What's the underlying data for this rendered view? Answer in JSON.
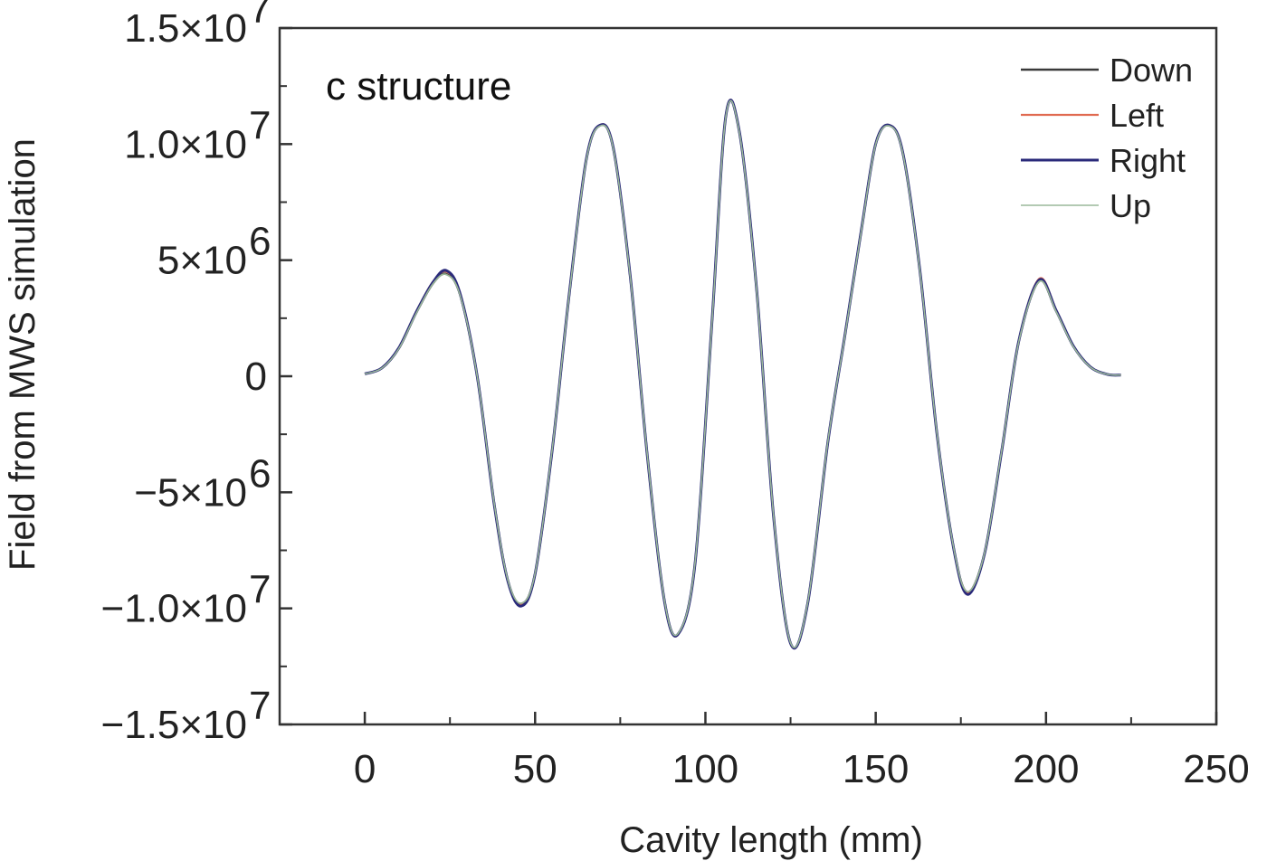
{
  "chart_data": {
    "type": "line",
    "title": "",
    "annotation": "c structure",
    "xlabel": "Cavity length (mm)",
    "ylabel": "Field from MWS simulation",
    "xlim": [
      -25,
      250
    ],
    "ylim": [
      -15000000,
      15000000
    ],
    "x_ticks": [
      {
        "value": 0,
        "label": "0"
      },
      {
        "value": 50,
        "label": "50"
      },
      {
        "value": 100,
        "label": "100"
      },
      {
        "value": 150,
        "label": "150"
      },
      {
        "value": 200,
        "label": "200"
      },
      {
        "value": 250,
        "label": "250"
      }
    ],
    "y_ticks": [
      {
        "value": 15000000,
        "label": "1.5×10",
        "exp": "7"
      },
      {
        "value": 10000000,
        "label": "1.0×10",
        "exp": "7"
      },
      {
        "value": 5000000,
        "label": "5×10",
        "exp": "6"
      },
      {
        "value": 0,
        "label": "0",
        "exp": ""
      },
      {
        "value": -5000000,
        "label": "−5×10",
        "exp": "6"
      },
      {
        "value": -10000000,
        "label": "−1.0×10",
        "exp": "7"
      },
      {
        "value": -15000000,
        "label": "−1.5×10",
        "exp": "7"
      }
    ],
    "grid": false,
    "legend_position": "top-right",
    "series": [
      {
        "name": "Down",
        "color": "#3a3a3a",
        "x": [
          0,
          5,
          10,
          15,
          20,
          24,
          28,
          33,
          38,
          42,
          46,
          50,
          55,
          60,
          65,
          69,
          73,
          78,
          83,
          88,
          92,
          97,
          102,
          106,
          110,
          115,
          120,
          125,
          130,
          136,
          141,
          146,
          150,
          154,
          158,
          163,
          168,
          173,
          177,
          182,
          187,
          192,
          198,
          203,
          208,
          213,
          218,
          222
        ],
        "y": [
          100000,
          350000,
          1200000,
          2700000,
          4000000,
          4400000,
          3500000,
          0,
          -5500000,
          -8800000,
          -9800000,
          -8500000,
          -3200000,
          3500000,
          9300000,
          10800000,
          9800000,
          4200000,
          -3500000,
          -9700000,
          -11100000,
          -8000000,
          2500000,
          11200000,
          10500000,
          3800000,
          -6000000,
          -11500000,
          -9800000,
          -2800000,
          1800000,
          6500000,
          10000000,
          10800000,
          9600000,
          4500000,
          -2500000,
          -7500000,
          -9300000,
          -7600000,
          -3200000,
          1500000,
          4100000,
          2800000,
          1300000,
          400000,
          80000,
          50000
        ]
      },
      {
        "name": "Left",
        "color": "#e06a50",
        "x": [
          0,
          5,
          10,
          15,
          20,
          24,
          28,
          33,
          38,
          42,
          46,
          50,
          55,
          60,
          65,
          69,
          73,
          78,
          83,
          88,
          92,
          97,
          102,
          106,
          110,
          115,
          120,
          125,
          130,
          136,
          141,
          146,
          150,
          154,
          158,
          163,
          168,
          173,
          177,
          182,
          187,
          192,
          198,
          203,
          208,
          213,
          218,
          222
        ],
        "y": [
          100000,
          360000,
          1230000,
          2750000,
          4070000,
          4500000,
          3560000,
          0,
          -5550000,
          -8850000,
          -9850000,
          -8520000,
          -3220000,
          3520000,
          9320000,
          10820000,
          9820000,
          4220000,
          -3520000,
          -9720000,
          -11120000,
          -8020000,
          2520000,
          11220000,
          10520000,
          3820000,
          -6020000,
          -11520000,
          -9820000,
          -2820000,
          1820000,
          6520000,
          10020000,
          10820000,
          9620000,
          4520000,
          -2520000,
          -7520000,
          -9320000,
          -7620000,
          -3220000,
          1520000,
          4200000,
          2850000,
          1320000,
          410000,
          80000,
          50000
        ]
      },
      {
        "name": "Right",
        "color": "#2a2a7a",
        "x": [
          0,
          5,
          10,
          15,
          20,
          24,
          28,
          33,
          38,
          42,
          46,
          50,
          55,
          60,
          65,
          69,
          73,
          78,
          83,
          88,
          92,
          97,
          102,
          106,
          110,
          115,
          120,
          125,
          130,
          136,
          141,
          146,
          150,
          154,
          158,
          163,
          168,
          173,
          177,
          182,
          187,
          192,
          198,
          203,
          208,
          213,
          218,
          222
        ],
        "y": [
          100000,
          355000,
          1220000,
          2730000,
          4050000,
          4550000,
          3540000,
          0,
          -5530000,
          -8830000,
          -9900000,
          -8510000,
          -3210000,
          3510000,
          9310000,
          10810000,
          9810000,
          4210000,
          -3510000,
          -9710000,
          -11110000,
          -8010000,
          2510000,
          11210000,
          10510000,
          3810000,
          -6010000,
          -11510000,
          -9810000,
          -2810000,
          1810000,
          6510000,
          10010000,
          10810000,
          9610000,
          4510000,
          -2510000,
          -7510000,
          -9400000,
          -7610000,
          -3210000,
          1510000,
          4150000,
          2830000,
          1310000,
          405000,
          80000,
          50000
        ]
      },
      {
        "name": "Up",
        "color": "#9ab89a",
        "x": [
          0,
          5,
          10,
          15,
          20,
          24,
          28,
          33,
          38,
          42,
          46,
          50,
          55,
          60,
          65,
          69,
          73,
          78,
          83,
          88,
          92,
          97,
          102,
          106,
          110,
          115,
          120,
          125,
          130,
          136,
          141,
          146,
          150,
          154,
          158,
          163,
          168,
          173,
          177,
          182,
          187,
          192,
          198,
          203,
          208,
          213,
          218,
          222
        ],
        "y": [
          100000,
          345000,
          1190000,
          2680000,
          3980000,
          4380000,
          3480000,
          0,
          -5480000,
          -8780000,
          -9780000,
          -8480000,
          -3180000,
          3480000,
          9280000,
          10780000,
          9780000,
          4180000,
          -3480000,
          -9680000,
          -11080000,
          -7980000,
          2480000,
          11180000,
          10480000,
          3780000,
          -5980000,
          -11480000,
          -9780000,
          -2780000,
          1780000,
          6480000,
          9980000,
          10780000,
          9580000,
          4480000,
          -2480000,
          -7480000,
          -9280000,
          -7580000,
          -3180000,
          1480000,
          4080000,
          2780000,
          1280000,
          395000,
          80000,
          50000
        ]
      }
    ]
  }
}
